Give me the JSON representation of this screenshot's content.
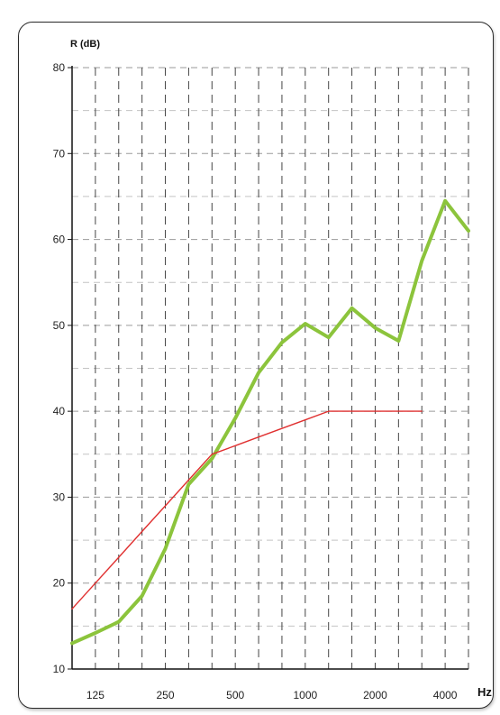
{
  "chart_data": {
    "type": "line",
    "ylabel": "R (dB)",
    "xunit": "Hz",
    "ylim": [
      10,
      80
    ],
    "yticks": [
      10,
      20,
      30,
      40,
      50,
      60,
      70,
      80
    ],
    "xscale": "log (third-octave bands)",
    "grid": true,
    "x_band_labels": [
      "125",
      "250",
      "500",
      "1000",
      "2000",
      "4000"
    ],
    "x": [
      100,
      125,
      160,
      200,
      250,
      315,
      400,
      500,
      630,
      800,
      1000,
      1250,
      1600,
      2000,
      2500,
      3150,
      4000,
      5000
    ],
    "series": [
      {
        "color": "#8cc43c",
        "values": [
          13,
          14.2,
          15.5,
          18.5,
          24,
          31.5,
          34.5,
          39.2,
          44.5,
          48,
          50.2,
          48.6,
          52,
          49.7,
          48.2,
          57.5,
          64.5,
          61
        ]
      },
      {
        "color": "#e03030",
        "x": [
          100,
          125,
          160,
          200,
          250,
          315,
          400,
          500,
          630,
          800,
          1000,
          1250,
          1600,
          2000,
          2500,
          3150
        ],
        "values": [
          17,
          20,
          23,
          26,
          29,
          32,
          35,
          36,
          37,
          38,
          39,
          40,
          40,
          40,
          40,
          40
        ]
      }
    ]
  }
}
